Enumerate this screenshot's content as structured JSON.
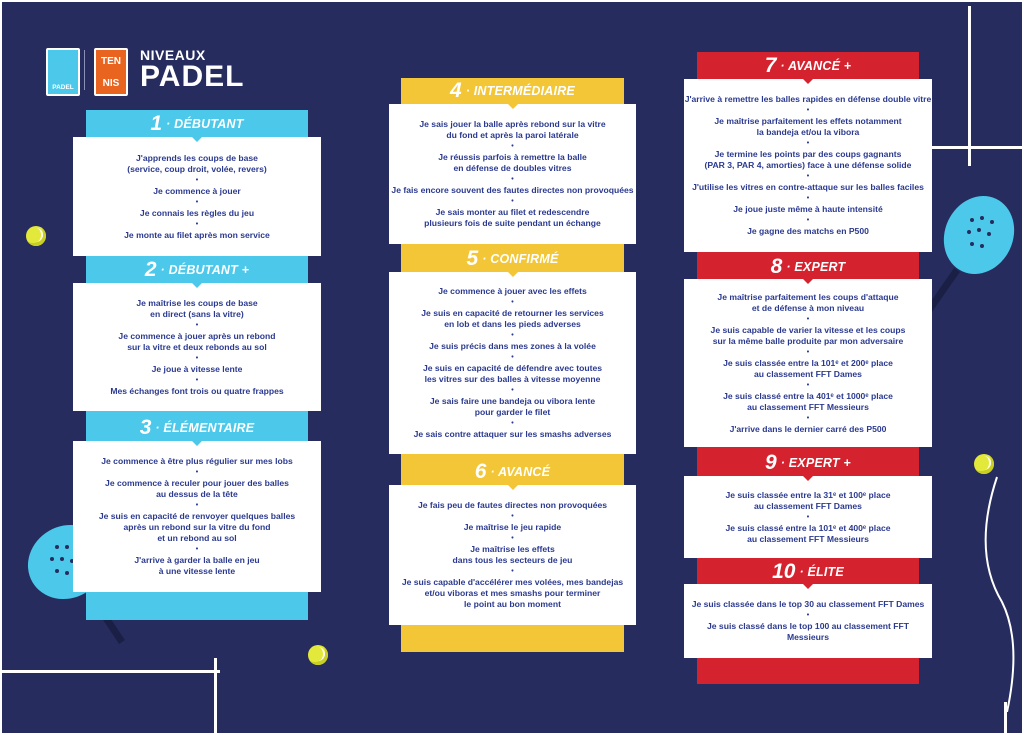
{
  "title": {
    "line1": "NIVEAUX",
    "line2": "PADEL"
  },
  "logos": {
    "padel": "PADEL",
    "tennis_top": "TEN",
    "tennis_bottom": "NIS"
  },
  "colors": {
    "background": "#262c5d",
    "debutant": "#4bc8ea",
    "intermediaire": "#f2c636",
    "avance": "#d4232e",
    "text": "#2b3a8f"
  },
  "levels": [
    {
      "number": "1",
      "label": "· DÉBUTANT",
      "items": [
        "J'apprends les coups de base\n(service, coup droit, volée, revers)",
        "Je commence à jouer",
        "Je connais les règles du jeu",
        "Je monte au filet après mon service"
      ]
    },
    {
      "number": "2",
      "label": "· DÉBUTANT +",
      "items": [
        "Je maîtrise les coups de base\nen direct (sans la vitre)",
        "Je commence à jouer après un rebond\nsur la vitre et deux rebonds au sol",
        "Je joue à vitesse lente",
        "Mes échanges font trois ou quatre frappes"
      ]
    },
    {
      "number": "3",
      "label": "· ÉLÉMENTAIRE",
      "items": [
        "Je commence à être plus régulier sur mes lobs",
        "Je commence à reculer pour jouer des balles\nau dessus de la tête",
        "Je suis en capacité de renvoyer quelques balles\naprès un rebond sur la vitre du fond\net un rebond au sol",
        "J'arrive à garder la balle en jeu\nà une vitesse lente"
      ]
    },
    {
      "number": "4",
      "label": "· INTERMÉDIAIRE",
      "items": [
        "Je sais jouer la balle après rebond sur la vitre\ndu fond et après la paroi latérale",
        "Je réussis parfois à remettre la balle\nen défense de doubles vitres",
        "Je fais encore souvent des fautes directes non provoquées",
        "Je sais monter au filet et redescendre\nplusieurs fois de suite pendant un échange"
      ]
    },
    {
      "number": "5",
      "label": "· CONFIRMÉ",
      "items": [
        "Je commence à jouer avec les effets",
        "Je suis en capacité de retourner les services\nen lob et dans les pieds adverses",
        "Je suis précis dans mes zones à la volée",
        "Je suis en capacité de défendre avec toutes\nles vitres sur des balles à vitesse moyenne",
        "Je sais faire une bandeja ou vibora lente\npour garder le filet",
        "Je sais contre attaquer sur les smashs adverses"
      ]
    },
    {
      "number": "6",
      "label": "· AVANCÉ",
      "items": [
        "Je fais peu de fautes directes non provoquées",
        "Je maîtrise le jeu rapide",
        "Je maîtrise les effets\ndans tous les secteurs de jeu",
        "Je suis capable d'accélérer mes volées, mes bandejas\net/ou viboras et mes smashs pour terminer\nle point au bon moment"
      ]
    },
    {
      "number": "7",
      "label": "· AVANCÉ +",
      "items": [
        "J'arrive à remettre les balles rapides en défense double vitre",
        "Je maîtrise parfaitement les effets notamment\nla bandeja et/ou la vibora",
        "Je termine les points par des coups gagnants\n(PAR 3, PAR 4, amorties) face à une défense solide",
        "J'utilise les vitres en contre-attaque sur les balles faciles",
        "Je joue juste même à haute intensité",
        "Je gagne des matchs en P500"
      ]
    },
    {
      "number": "8",
      "label": "· EXPERT",
      "items": [
        "Je maîtrise parfaitement les coups d'attaque\net de défense à mon niveau",
        "Je suis capable de varier la vitesse et les coups\nsur la même balle produite par mon adversaire",
        "Je suis classée entre la 101ᵉ et 200ᵉ place\nau classement FFT Dames",
        "Je suis classé entre la 401ᵉ et 1000ᵉ place\nau classement FFT Messieurs",
        "J'arrive dans le dernier carré des P500"
      ]
    },
    {
      "number": "9",
      "label": "· EXPERT +",
      "items": [
        "Je suis classée entre la 31ᵉ et 100ᵉ place\nau classement FFT Dames",
        "Je suis classé entre la 101ᵉ et 400ᵉ place\nau classement FFT Messieurs"
      ]
    },
    {
      "number": "10",
      "label": "· ÉLITE",
      "items": [
        "Je suis classée dans le top 30 au classement FFT Dames",
        "Je suis classé dans le top 100 au classement FFT\nMessieurs"
      ]
    }
  ]
}
